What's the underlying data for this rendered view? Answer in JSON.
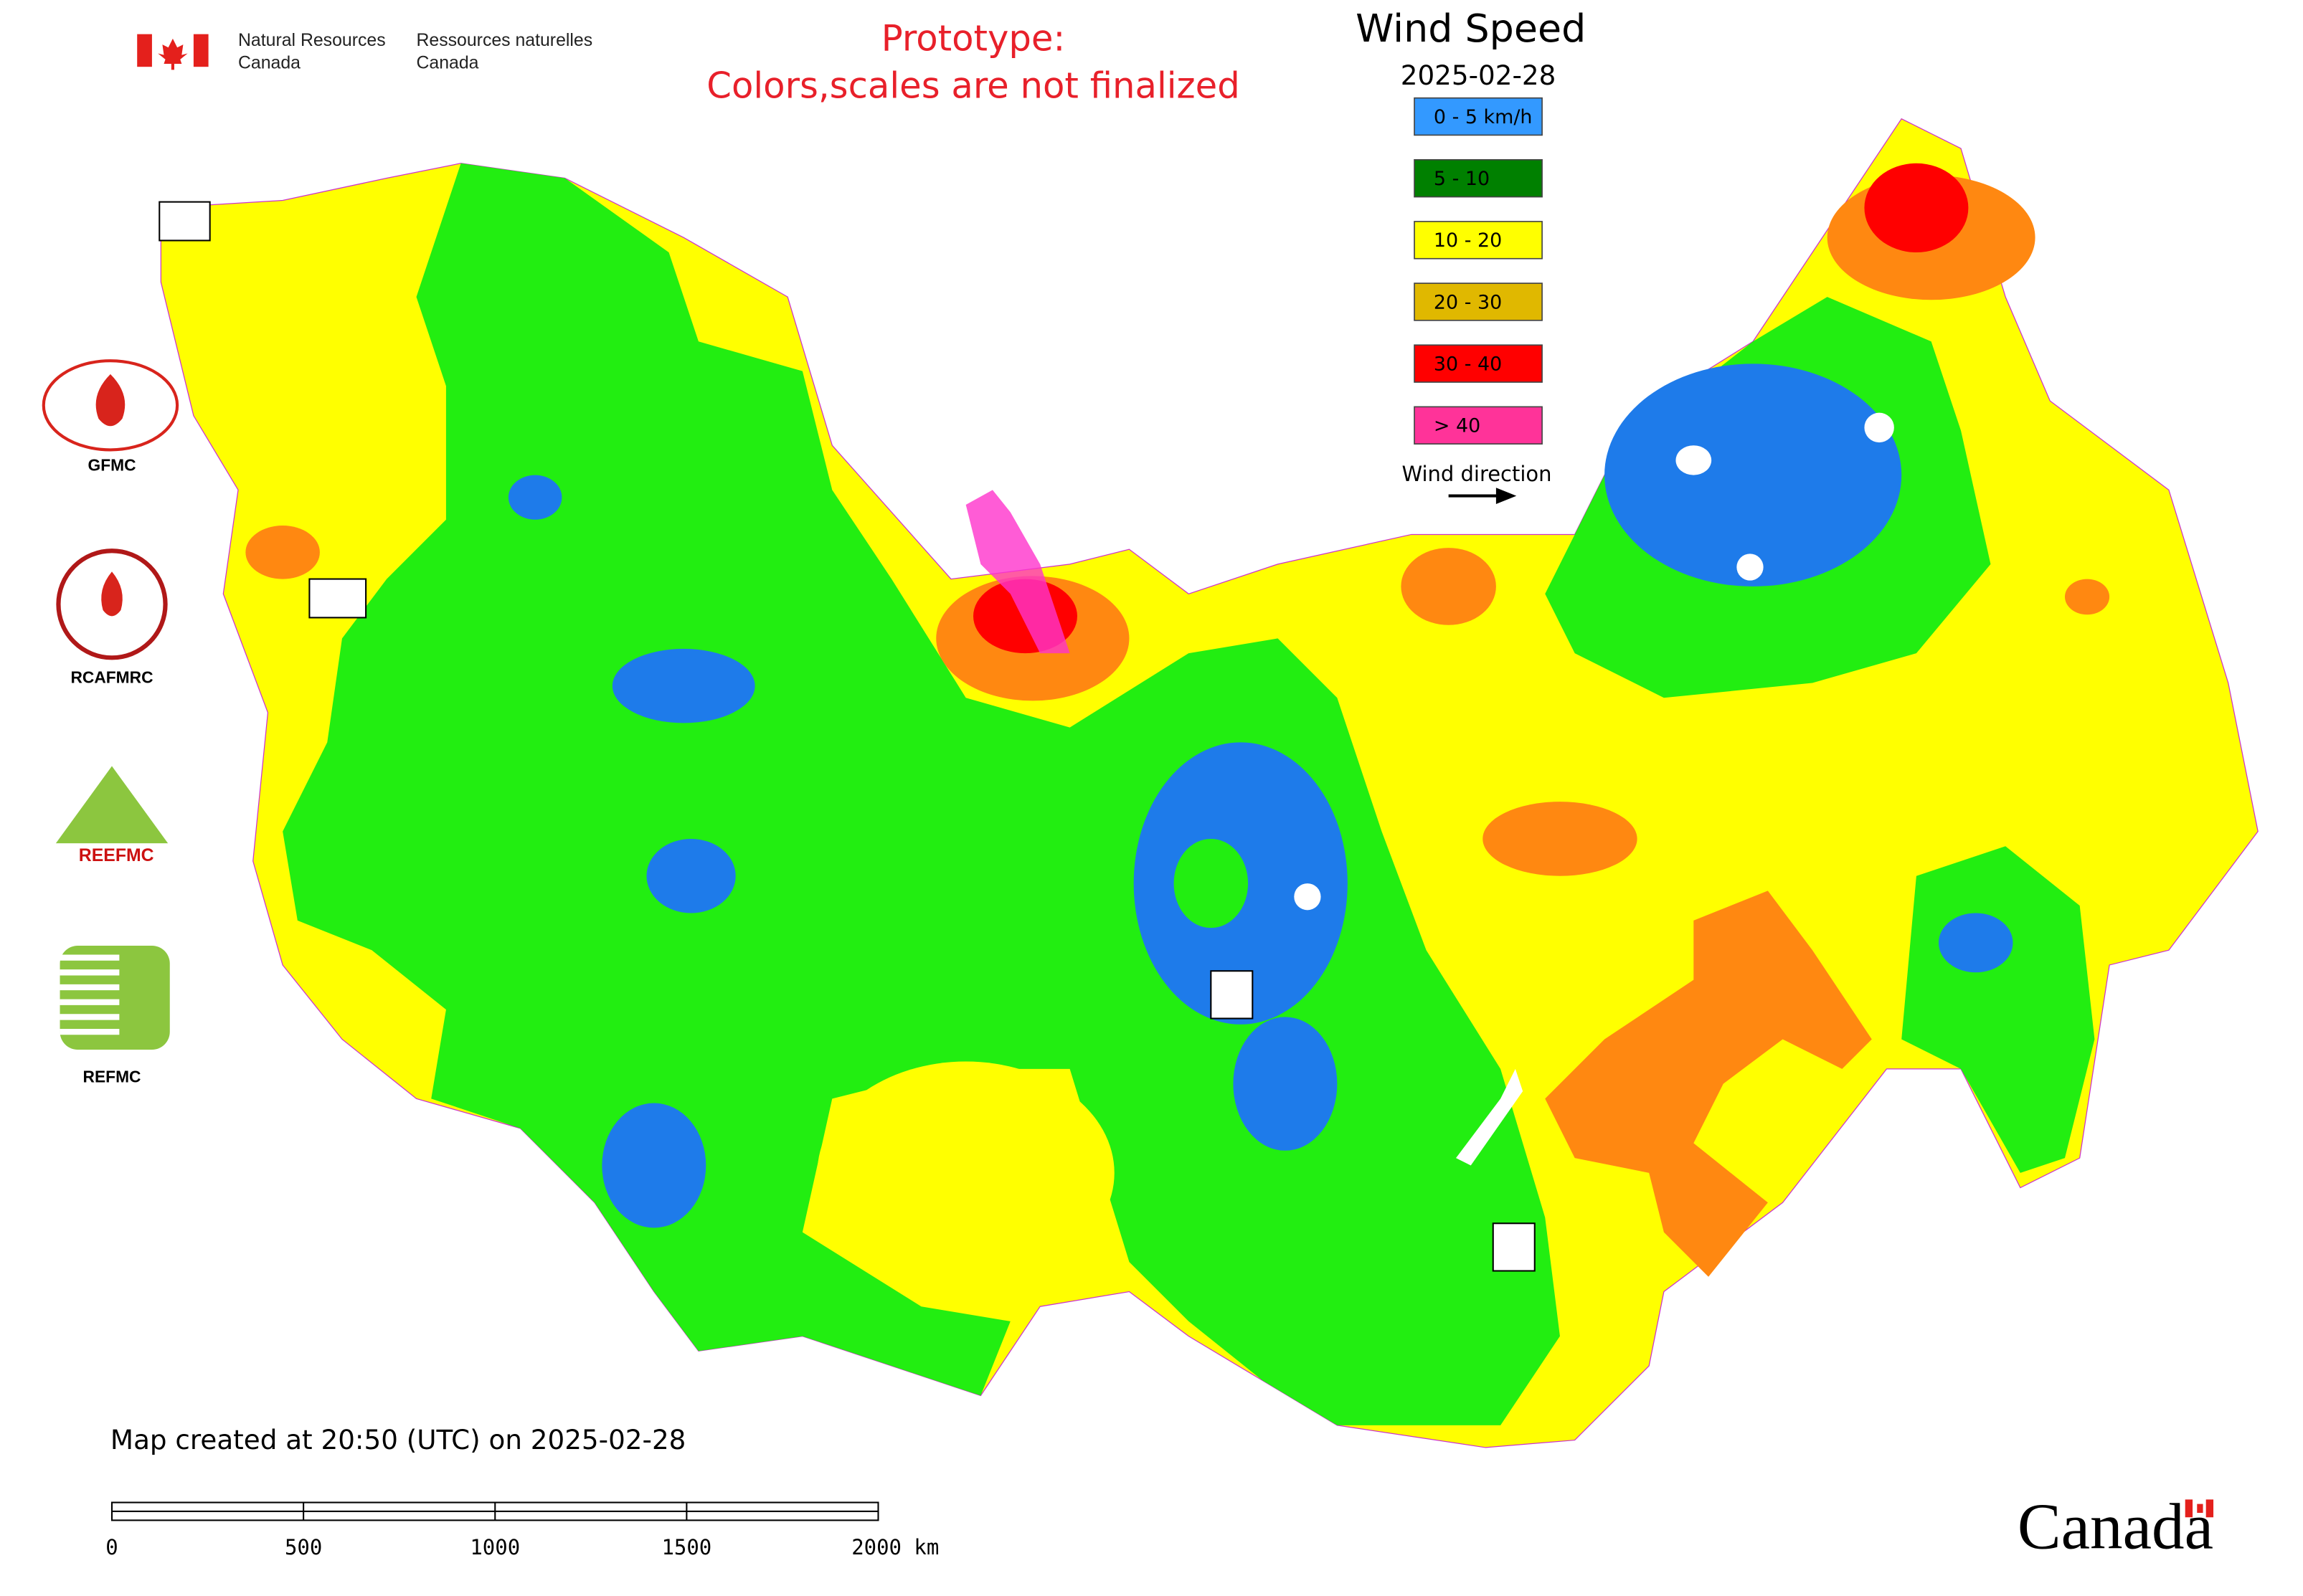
{
  "agency": {
    "en_line1": "Natural Resources",
    "en_line2": "Canada",
    "fr_line1": "Ressources naturelles",
    "fr_line2": "Canada"
  },
  "notice": [
    "Prototype:",
    "Colors,scales are not finalized"
  ],
  "legend": {
    "title": "Wind Speed",
    "date": "2025-02-28",
    "items": [
      {
        "label": "0 - 5 km/h",
        "color": "#3399ff"
      },
      {
        "label": "5 - 10",
        "color": "#008000"
      },
      {
        "label": "10 - 20",
        "color": "#ffff00"
      },
      {
        "label": "20 - 30",
        "color": "#e0b800"
      },
      {
        "label": "30 - 40",
        "color": "#ff0000"
      },
      {
        "label": "> 40",
        "color": "#ff3399"
      }
    ],
    "wind_direction": "Wind direction"
  },
  "logos": [
    "GFMC",
    "RCAFMRC",
    "REFMC"
  ],
  "map_info": "Map created at 20:50 (UTC) on 2025-02-28",
  "scale_bar": [
    "0",
    "500",
    "1000",
    "1500",
    "2000 km"
  ],
  "wordmark": "Canada"
}
